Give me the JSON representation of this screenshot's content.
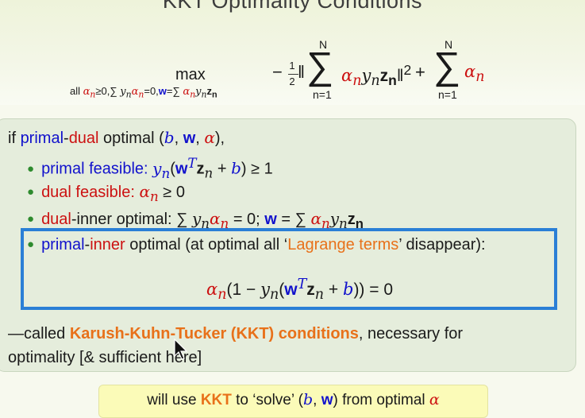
{
  "title": "KKT Optimality Conditions",
  "formula": {
    "max_word": "max",
    "constraint": "all αn≥0,∑ ynαn=0,w=∑ αnynzn",
    "objective_part1": "−½‖ ∑ αnynzn‖² ",
    "objective_part2": "+ ∑ αn",
    "sum_upper": "N",
    "sum_lower": "n=1"
  },
  "kkt_box": {
    "intro": "if primal-dual optimal (b, w, α),",
    "bullets": [
      {
        "label": "primal feasible:",
        "math": "yn(wTzn + b) ≥ 1"
      },
      {
        "label": "dual feasible:",
        "math": "αn ≥ 0"
      },
      {
        "label": "dual-inner optimal:",
        "math": "∑ ynαn = 0; w = ∑ αnynzn"
      },
      {
        "label": "primal-inner optimal (at optimal all ‘Lagrange terms’ disappear):"
      }
    ],
    "highlight_equation": "αn(1 − yn(wTzn + b)) = 0",
    "closing_prefix": "—called ",
    "closing_highlight": "Karush-Kuhn-Tucker (KKT) conditions",
    "closing_suffix": ", necessary for",
    "closing_line2": "optimality [& sufficient here]"
  },
  "bottom_note": "will use KKT to ‘solve’ (b, w) from optimal α",
  "colors": {
    "primal": "#1111cc",
    "dual": "#cc1111",
    "kkt_orange": "#e8711a",
    "highlight_frame": "#2a7fd6",
    "box_background": "#e5eddc",
    "note_background": "#fbfbb8"
  }
}
